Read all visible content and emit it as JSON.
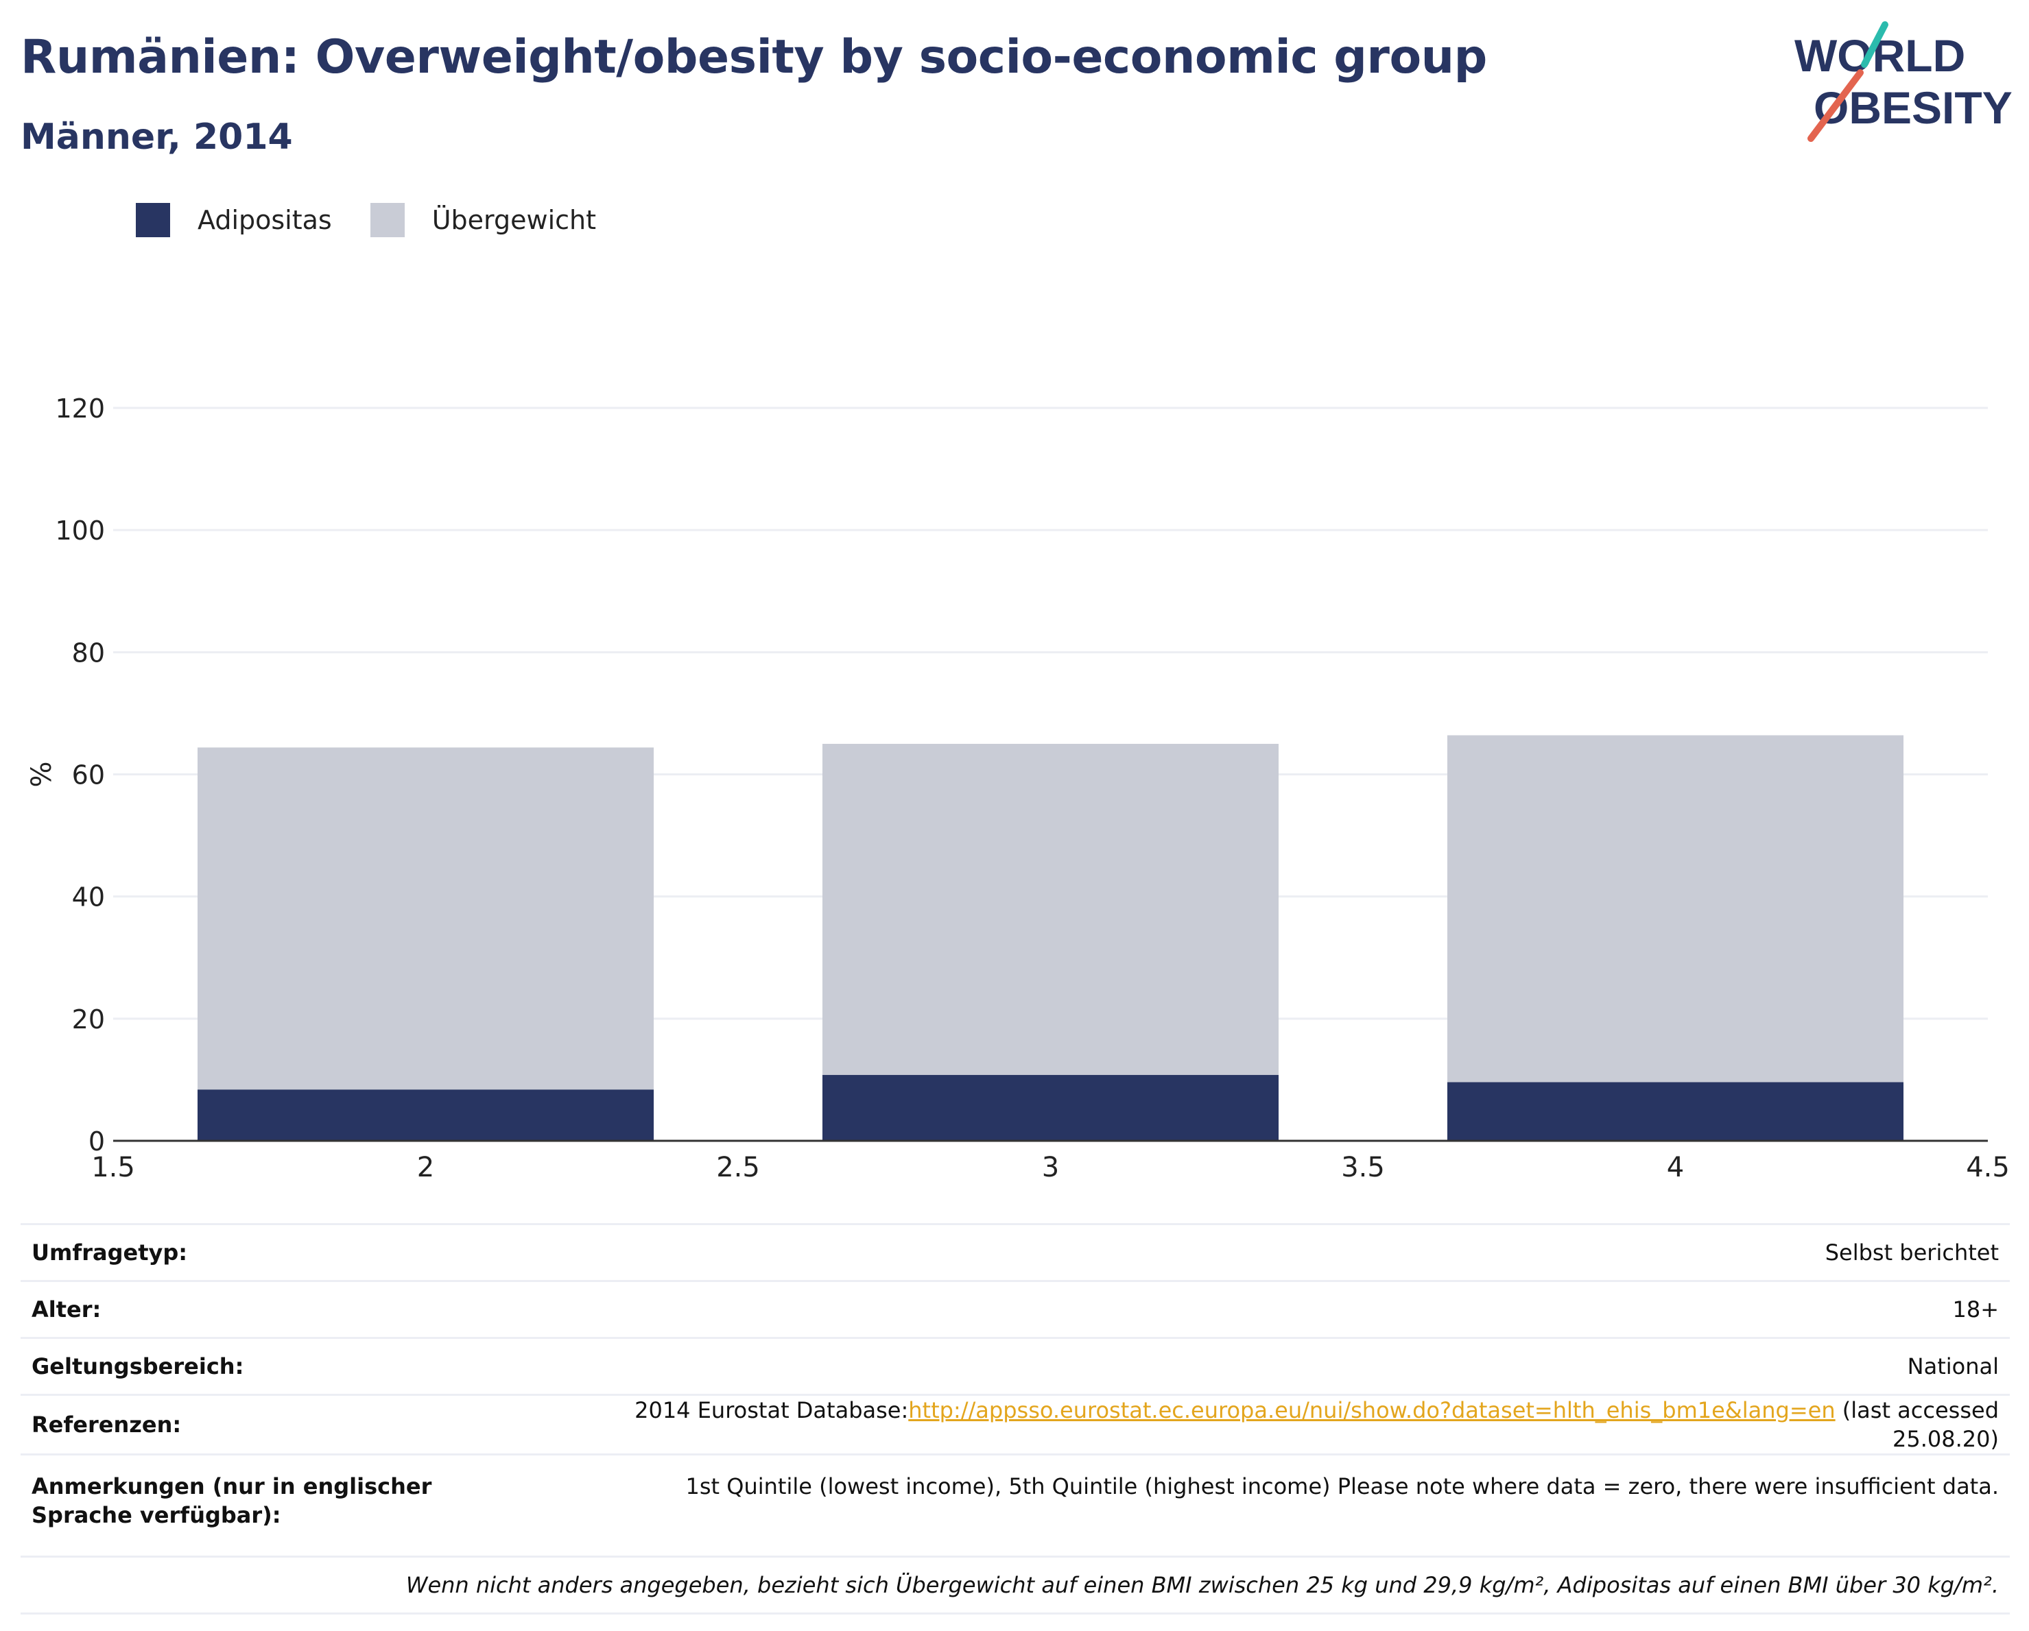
{
  "header": {
    "title": "Rumänien: Overweight/obesity by socio-economic group",
    "subtitle": "Männer, 2014"
  },
  "logo": {
    "line1": "WORLD",
    "line2": "OBESITY"
  },
  "legend": [
    {
      "label": "Adipositas",
      "color": "#283562"
    },
    {
      "label": "Übergewicht",
      "color": "#c9ccd6"
    }
  ],
  "chart_data": {
    "type": "bar",
    "stacked": true,
    "x": [
      2,
      3,
      4
    ],
    "series": [
      {
        "name": "Adipositas",
        "color": "#283562",
        "values": [
          8.4,
          10.8,
          9.6
        ]
      },
      {
        "name": "Übergewicht",
        "color": "#c9ccd6",
        "values": [
          56.0,
          54.2,
          56.8
        ]
      }
    ],
    "bar_width": 0.73,
    "xlim": [
      1.5,
      4.5
    ],
    "xticks": [
      "1.5",
      "2",
      "2.5",
      "3",
      "3.5",
      "4",
      "4.5"
    ],
    "ylim": [
      0,
      120
    ],
    "yticks": [
      "0",
      "20",
      "40",
      "60",
      "80",
      "100",
      "120"
    ],
    "ylabel": "%",
    "grid": true,
    "legend_position": "top-left"
  },
  "info": {
    "survey_type": {
      "key": "Umfragetyp:",
      "value": "Selbst berichtet"
    },
    "age": {
      "key": "Alter:",
      "value": "18+"
    },
    "coverage": {
      "key": "Geltungsbereich:",
      "value": "National"
    },
    "references": {
      "key": "Referenzen:",
      "prefix": "2014 Eurostat Database:",
      "link": "http://appsso.eurostat.ec.europa.eu/nui/show.do?dataset=hlth_ehis_bm1e&lang=en",
      "suffix": " (last accessed 25.08.20)"
    },
    "notes": {
      "key": "Anmerkungen (nur in englischer Sprache verfügbar):",
      "value": "1st Quintile (lowest income), 5th Quintile (highest income) Please note where data = zero, there were insufficient data."
    },
    "footnote": "Wenn nicht anders angegeben, bezieht sich Übergewicht auf einen BMI zwischen 25 kg und 29,9 kg/m², Adipositas auf einen BMI über 30 kg/m²."
  }
}
